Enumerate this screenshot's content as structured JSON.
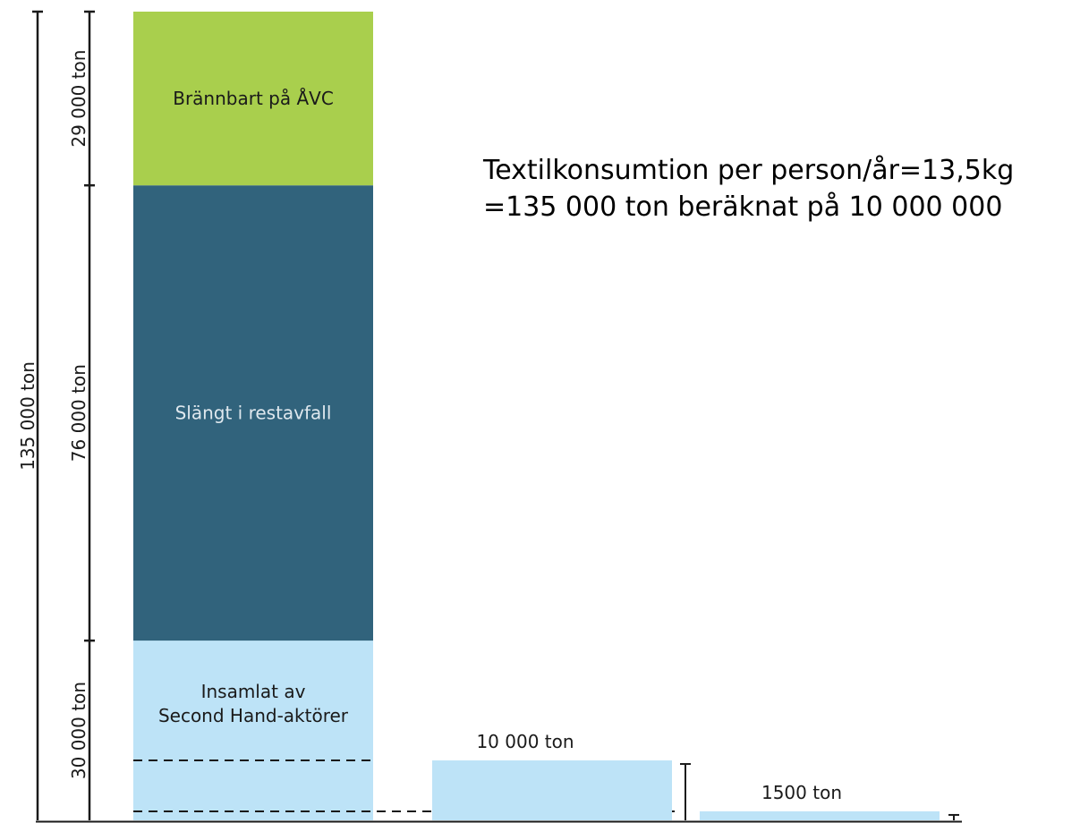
{
  "chart_data": {
    "type": "bar",
    "unit": "ton",
    "headline": [
      "Textilkonsumtion per person/år=13,5kg",
      "=135 000 ton beräknat på 10 000 000"
    ],
    "stacked_bar": {
      "total": 135000,
      "total_label": "135 000 ton",
      "segments": [
        {
          "name": "Insamlat av\nSecond Hand-aktörer",
          "value": 30000,
          "value_label": "30 000 ton",
          "color": "#bde3f7",
          "text_color": "#1a1a1a"
        },
        {
          "name": "Slängt i restavfall",
          "value": 76000,
          "value_label": "76 000 ton",
          "color": "#31637c",
          "text_color": "#dfe8ee"
        },
        {
          "name": "Brännbart på ÅVC",
          "value": 29000,
          "value_label": "29 000 ton",
          "color": "#a9cf4d",
          "text_color": "#1a1a1a"
        }
      ],
      "dashed_levels": [
        10000,
        1500
      ]
    },
    "side_bars": [
      {
        "value": 10000,
        "label": "10 000 ton",
        "color": "#bde3f7"
      },
      {
        "value": 1500,
        "label": "1500 ton",
        "color": "#bde3f7"
      }
    ]
  }
}
